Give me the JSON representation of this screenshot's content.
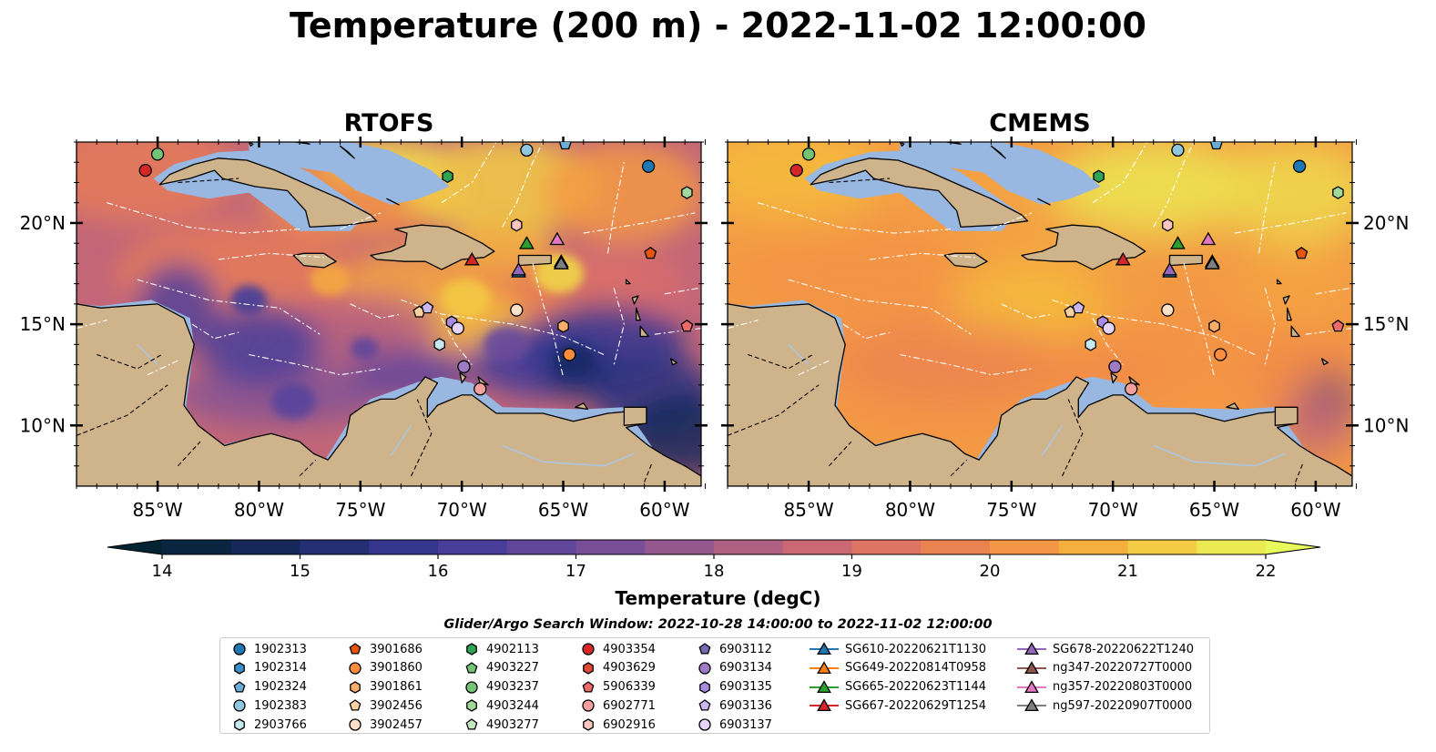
{
  "title": "Temperature (200 m) - 2022-11-02 12:00:00",
  "panels": [
    {
      "title": "RTOFS",
      "style": "rtofs"
    },
    {
      "title": "CMEMS",
      "style": "cmems"
    }
  ],
  "chart_data": {
    "type": "heatmap",
    "variable": "Temperature",
    "depth": "200 m",
    "x_ticks": [
      "85°W",
      "80°W",
      "75°W",
      "70°W",
      "65°W",
      "60°W"
    ],
    "x_tick_values": [
      -85,
      -80,
      -75,
      -70,
      -65,
      -60
    ],
    "y_ticks": [
      "10°N",
      "15°N",
      "20°N"
    ],
    "y_tick_values": [
      10,
      15,
      20
    ],
    "xlim": [
      -89,
      -58.2
    ],
    "ylim": [
      7,
      24
    ],
    "colorbar": {
      "label": "Temperature (degC)",
      "min": 14,
      "max": 22,
      "step": 0.5,
      "ticks": [
        "14",
        "15",
        "16",
        "17",
        "18",
        "19",
        "20",
        "21",
        "22"
      ],
      "extend": "both",
      "colormap": "thermal"
    },
    "search_window": "Glider/Argo Search Window: 2022-10-28 14:00:00 to 2022-11-02 12:00:00",
    "argo_floats": [
      {
        "id": "1902313",
        "marker": "circle",
        "color": "#1f77b4",
        "lon": -60.8,
        "lat": 22.8
      },
      {
        "id": "1902314",
        "marker": "hexagon",
        "color": "#3f8fc8",
        "lon": null,
        "lat": null
      },
      {
        "id": "1902324",
        "marker": "pentagon",
        "color": "#6aaed6",
        "lon": -64.9,
        "lat": 23.9
      },
      {
        "id": "1902383",
        "marker": "circle",
        "color": "#92c5de",
        "lon": -66.8,
        "lat": 23.6
      },
      {
        "id": "2903766",
        "marker": "hexagon",
        "color": "#c6e9f0",
        "lon": -71.1,
        "lat": 14.0
      },
      {
        "id": "3901686",
        "marker": "pentagon",
        "color": "#e6550d",
        "lon": -60.7,
        "lat": 18.5
      },
      {
        "id": "3901860",
        "marker": "circle",
        "color": "#fd8d3c",
        "lon": -64.7,
        "lat": 13.5
      },
      {
        "id": "3901861",
        "marker": "hexagon",
        "color": "#fdae6b",
        "lon": -65.0,
        "lat": 14.9
      },
      {
        "id": "3902456",
        "marker": "pentagon",
        "color": "#fdd0a2",
        "lon": -72.1,
        "lat": 15.6
      },
      {
        "id": "3902457",
        "marker": "circle",
        "color": "#fee0c6",
        "lon": -67.3,
        "lat": 15.7
      },
      {
        "id": "4902113",
        "marker": "hexagon",
        "color": "#31a354",
        "lon": -70.7,
        "lat": 22.3
      },
      {
        "id": "4903227",
        "marker": "pentagon",
        "color": "#74c476",
        "lon": null,
        "lat": null
      },
      {
        "id": "4903237",
        "marker": "circle",
        "color": "#74c476",
        "lon": -85.0,
        "lat": 23.4
      },
      {
        "id": "4903244",
        "marker": "hexagon",
        "color": "#a1d99b",
        "lon": -58.9,
        "lat": 21.5
      },
      {
        "id": "4903277",
        "marker": "pentagon",
        "color": "#c7e9c0",
        "lon": null,
        "lat": null
      },
      {
        "id": "4903354",
        "marker": "circle",
        "color": "#d62728",
        "lon": -85.6,
        "lat": 22.6
      },
      {
        "id": "4903629",
        "marker": "hexagon",
        "color": "#e34a33",
        "lon": null,
        "lat": null
      },
      {
        "id": "5906339",
        "marker": "pentagon",
        "color": "#ef6b6b",
        "lon": -58.9,
        "lat": 14.9
      },
      {
        "id": "6902771",
        "marker": "circle",
        "color": "#f4a09c",
        "lon": -69.1,
        "lat": 11.8
      },
      {
        "id": "6902916",
        "marker": "hexagon",
        "color": "#fcc5c0",
        "lon": -67.3,
        "lat": 19.9
      },
      {
        "id": "6903112",
        "marker": "pentagon",
        "color": "#756bb1",
        "lon": null,
        "lat": null
      },
      {
        "id": "6903134",
        "marker": "circle",
        "color": "#9e7bc4",
        "lon": -69.9,
        "lat": 12.9
      },
      {
        "id": "6903135",
        "marker": "hexagon",
        "color": "#a98be0",
        "lon": -70.5,
        "lat": 15.1
      },
      {
        "id": "6903136",
        "marker": "pentagon",
        "color": "#cbb6f2",
        "lon": -71.7,
        "lat": 15.8
      },
      {
        "id": "6903137",
        "marker": "circle",
        "color": "#e5d4fb",
        "lon": -70.2,
        "lat": 14.8
      }
    ],
    "gliders": [
      {
        "id": "SG610-20220621T1130",
        "marker": "triangle",
        "color": "#1f77b4",
        "lon": -67.2,
        "lat": 17.6
      },
      {
        "id": "SG649-20220814T0958",
        "marker": "triangle",
        "color": "#ff7f0e",
        "lon": null,
        "lat": null
      },
      {
        "id": "SG665-20220623T1144",
        "marker": "triangle",
        "color": "#2ca02c",
        "lon": -66.8,
        "lat": 19.0
      },
      {
        "id": "SG667-20220629T1254",
        "marker": "triangle",
        "color": "#d62728",
        "lon": -69.5,
        "lat": 18.2
      },
      {
        "id": "SG678-20220622T1240",
        "marker": "triangle",
        "color": "#9467bd",
        "lon": -67.2,
        "lat": 17.7
      },
      {
        "id": "ng347-20220727T0000",
        "marker": "triangle",
        "color": "#8c564b",
        "lon": -65.1,
        "lat": 18.1
      },
      {
        "id": "ng357-20220803T0000",
        "marker": "triangle",
        "color": "#e377c2",
        "lon": -65.3,
        "lat": 19.2
      },
      {
        "id": "ng597-20220907T0000",
        "marker": "triangle",
        "color": "#7f7f7f",
        "lon": -65.1,
        "lat": 18.0
      }
    ]
  }
}
